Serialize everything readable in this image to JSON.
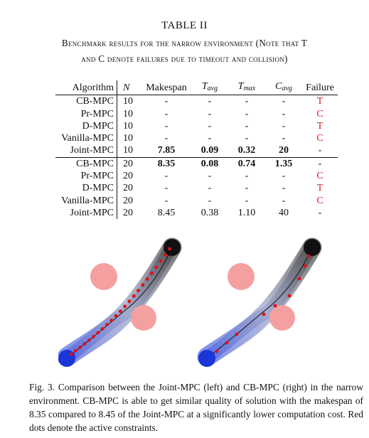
{
  "table": {
    "title": "TABLE II",
    "caption_line1": "Benchmark results for the narrow environment (Note that T",
    "caption_line2": "and C denote failures due to timeout and collision)",
    "headers": {
      "algorithm": "Algorithm",
      "n": "N",
      "makespan": "Makespan",
      "t_avg_base": "T",
      "t_avg_sub": "avg",
      "t_max_base": "T",
      "t_max_sub": "max",
      "c_avg_base": "C",
      "c_avg_sub": "avg",
      "failure": "Failure"
    },
    "rows": [
      {
        "algorithm": "CB-MPC",
        "n": "10",
        "makespan": "-",
        "t_avg": "-",
        "t_max": "-",
        "c_avg": "-",
        "failure": "T"
      },
      {
        "algorithm": "Pr-MPC",
        "n": "10",
        "makespan": "-",
        "t_avg": "-",
        "t_max": "-",
        "c_avg": "-",
        "failure": "C"
      },
      {
        "algorithm": "D-MPC",
        "n": "10",
        "makespan": "-",
        "t_avg": "-",
        "t_max": "-",
        "c_avg": "-",
        "failure": "T"
      },
      {
        "algorithm": "Vanilla-MPC",
        "n": "10",
        "makespan": "-",
        "t_avg": "-",
        "t_max": "-",
        "c_avg": "-",
        "failure": "C"
      },
      {
        "algorithm": "Joint-MPC",
        "n": "10",
        "makespan": "7.85",
        "t_avg": "0.09",
        "t_max": "0.32",
        "c_avg": "20",
        "failure": "-"
      },
      {
        "algorithm": "CB-MPC",
        "n": "20",
        "makespan": "8.35",
        "t_avg": "0.08",
        "t_max": "0.74",
        "c_avg": "1.35",
        "failure": "-"
      },
      {
        "algorithm": "Pr-MPC",
        "n": "20",
        "makespan": "-",
        "t_avg": "-",
        "t_max": "-",
        "c_avg": "-",
        "failure": "C"
      },
      {
        "algorithm": "D-MPC",
        "n": "20",
        "makespan": "-",
        "t_avg": "-",
        "t_max": "-",
        "c_avg": "-",
        "failure": "T"
      },
      {
        "algorithm": "Vanilla-MPC",
        "n": "20",
        "makespan": "-",
        "t_avg": "-",
        "t_max": "-",
        "c_avg": "-",
        "failure": "C"
      },
      {
        "algorithm": "Joint-MPC",
        "n": "20",
        "makespan": "8.45",
        "t_avg": "0.38",
        "t_max": "1.10",
        "c_avg": "40",
        "failure": "-"
      }
    ]
  },
  "figure": {
    "caption": "Fig. 3.   Comparison between the Joint-MPC (left) and CB-MPC (right) in the narrow environment. CB-MPC is able to get similar quality of solution with the makespan of 8.35 compared to 8.45 of the Joint-MPC at a significantly lower computation cost. Red dots denote the active constraints.",
    "colors": {
      "obstacle": "#f4a0a0",
      "start_robot": "#1a35d8",
      "goal_robot": "#101010",
      "active_constraint": "#e01010",
      "path": "#111111"
    }
  }
}
